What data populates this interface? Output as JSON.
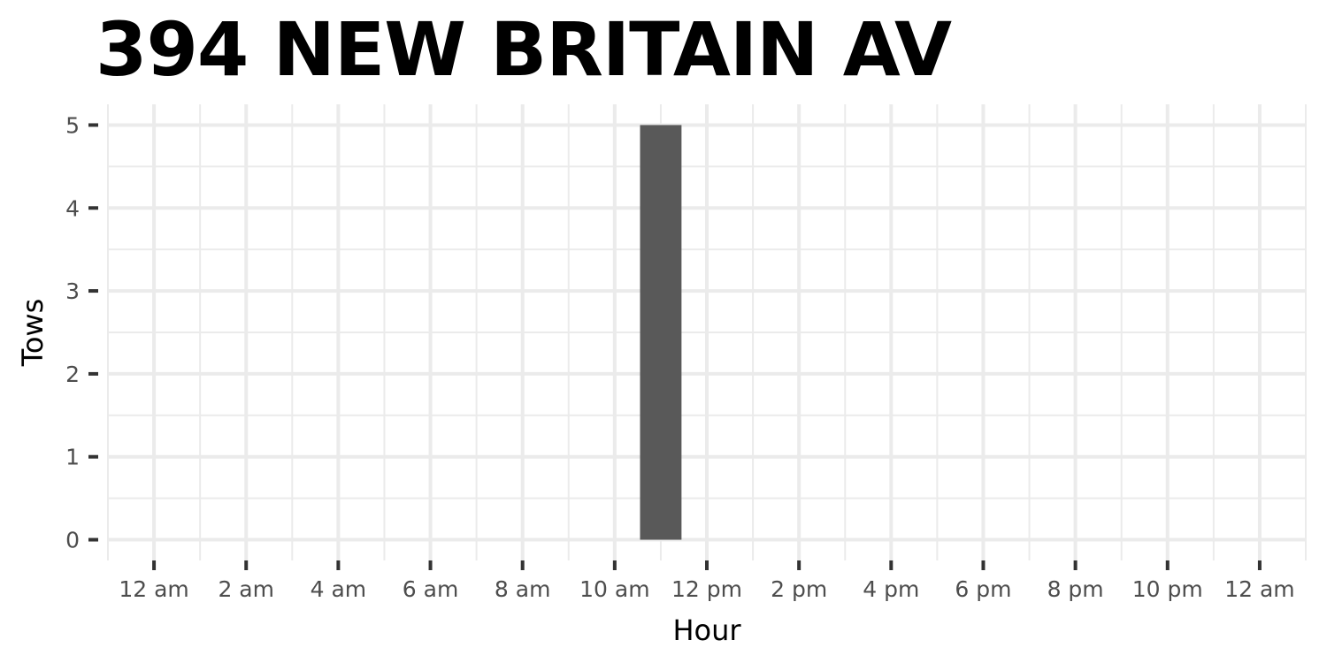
{
  "chart_data": {
    "type": "bar",
    "title": "394 NEW BRITAIN AV",
    "xlabel": "Hour",
    "ylabel": "Tows",
    "x_tick_labels": [
      "12 am",
      "2 am",
      "4 am",
      "6 am",
      "8 am",
      "10 am",
      "12 pm",
      "2 pm",
      "4 pm",
      "6 pm",
      "8 pm",
      "10 pm",
      "12 am"
    ],
    "y_tick_labels": [
      "0",
      "1",
      "2",
      "3",
      "4",
      "5"
    ],
    "xlim": [
      -1,
      25
    ],
    "ylim": [
      -0.25,
      5.25
    ],
    "bars": [
      {
        "hour": 11,
        "value": 5
      }
    ],
    "grid": true,
    "colors": {
      "bar": "#595959",
      "grid": "#ebebeb",
      "tick": "#333333"
    }
  }
}
